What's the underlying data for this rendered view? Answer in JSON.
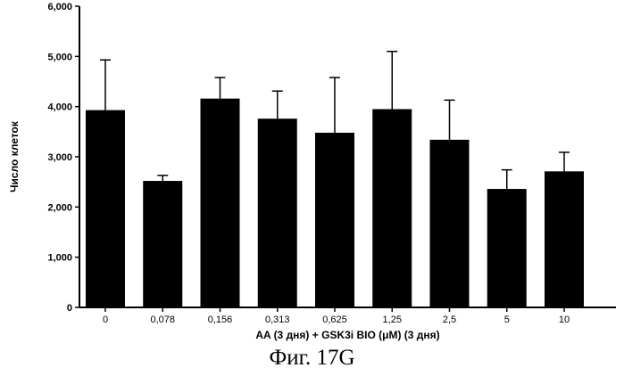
{
  "chart_data": {
    "type": "bar",
    "title": "",
    "xlabel": "AA (3 дня)  + GSK3i BIO (μM) (3 дня)",
    "ylabel": "Число клеток",
    "categories": [
      "0",
      "0,078",
      "0,156",
      "0,313",
      "0,625",
      "1,25",
      "2,5",
      "5",
      "10"
    ],
    "values": [
      3930,
      2520,
      4160,
      3760,
      3480,
      3950,
      3340,
      2360,
      2710
    ],
    "errors": [
      1000,
      110,
      420,
      550,
      1100,
      1150,
      790,
      380,
      380
    ],
    "ylim": [
      0,
      6000
    ],
    "yticks": [
      0,
      1000,
      2000,
      3000,
      4000,
      5000,
      6000
    ],
    "ytick_labels": [
      "0",
      "1,000",
      "2,000",
      "3,000",
      "4,000",
      "5,000",
      "6,000"
    ],
    "bar_color": "#000000",
    "grid": false,
    "legend": "none"
  },
  "caption": "Фиг. 17G"
}
